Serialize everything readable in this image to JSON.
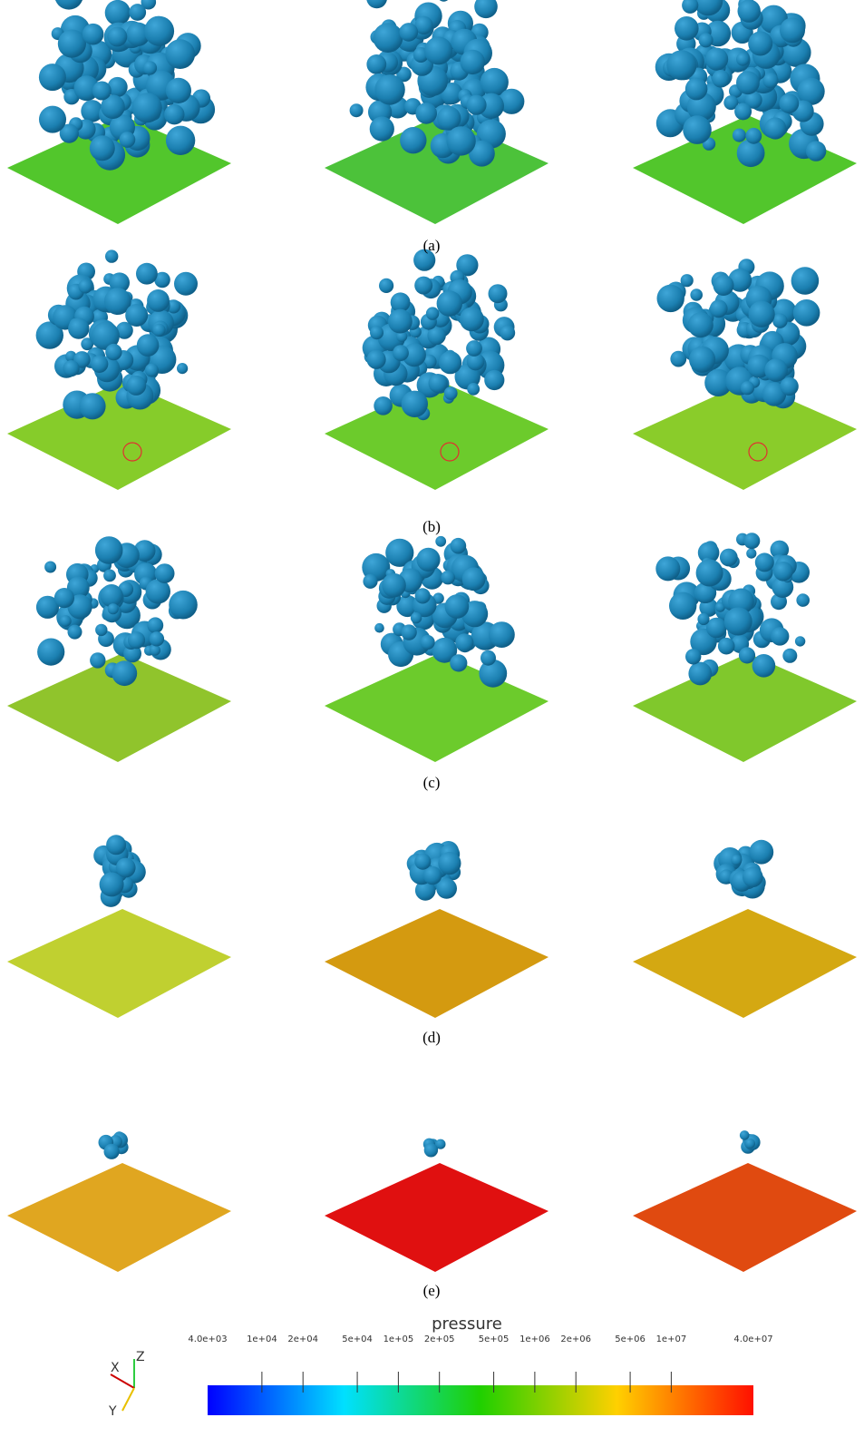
{
  "captions": [
    "(a)",
    "(b)",
    "(c)",
    "(d)",
    "(e)"
  ],
  "axes_triad": {
    "x": "X",
    "y": "Y",
    "z": "Z"
  },
  "colorbar": {
    "title": "pressure",
    "log": true,
    "range": [
      4000,
      40000000
    ],
    "ticks": [
      {
        "value": 4000,
        "label": "4.0e+03"
      },
      {
        "value": 10000,
        "label": "1e+04"
      },
      {
        "value": 20000,
        "label": "2e+04"
      },
      {
        "value": 50000,
        "label": "5e+04"
      },
      {
        "value": 100000,
        "label": "1e+05"
      },
      {
        "value": 200000,
        "label": "2e+05"
      },
      {
        "value": 500000,
        "label": "5e+05"
      },
      {
        "value": 1000000,
        "label": "1e+06"
      },
      {
        "value": 2000000,
        "label": "2e+06"
      },
      {
        "value": 5000000,
        "label": "5e+06"
      },
      {
        "value": 10000000,
        "label": "1e+07"
      },
      {
        "value": 40000000,
        "label": "4.0e+07"
      }
    ]
  }
}
